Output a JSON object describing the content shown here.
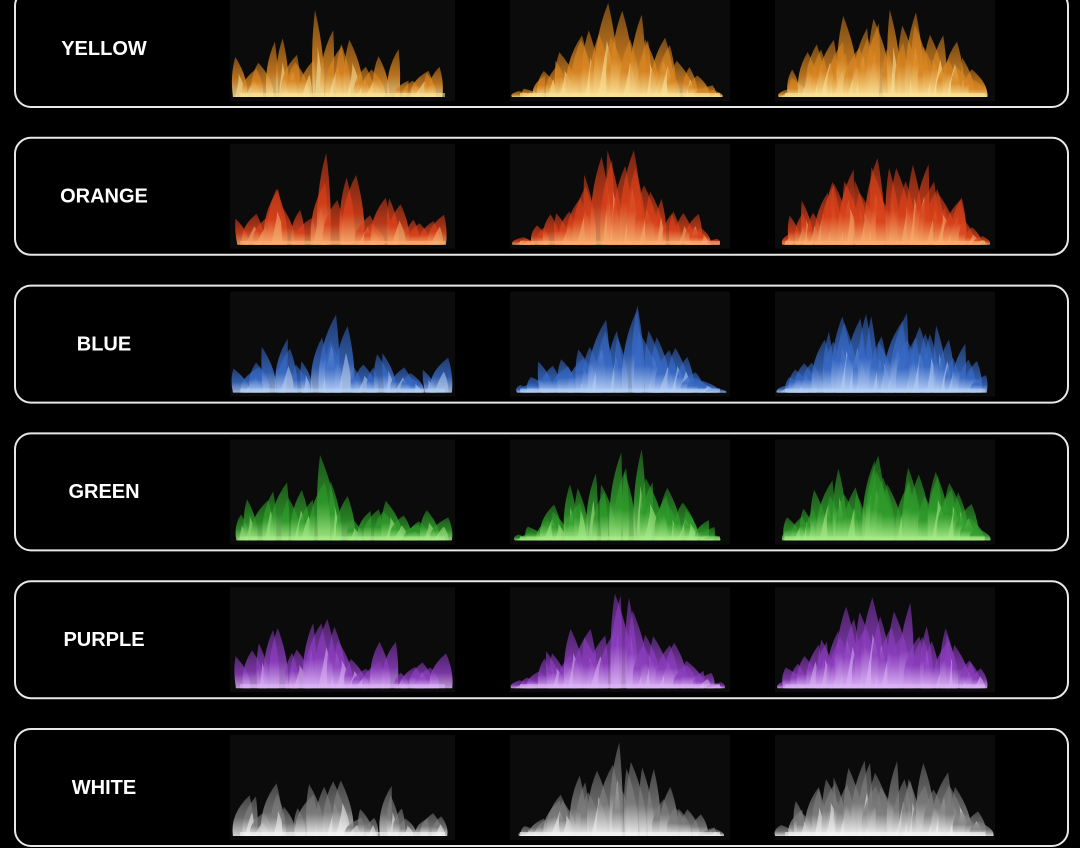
{
  "rows": [
    "YELLOW",
    "ORANGE",
    "BLUE",
    "GREEN",
    "PURPLE",
    "WHITE"
  ]
}
